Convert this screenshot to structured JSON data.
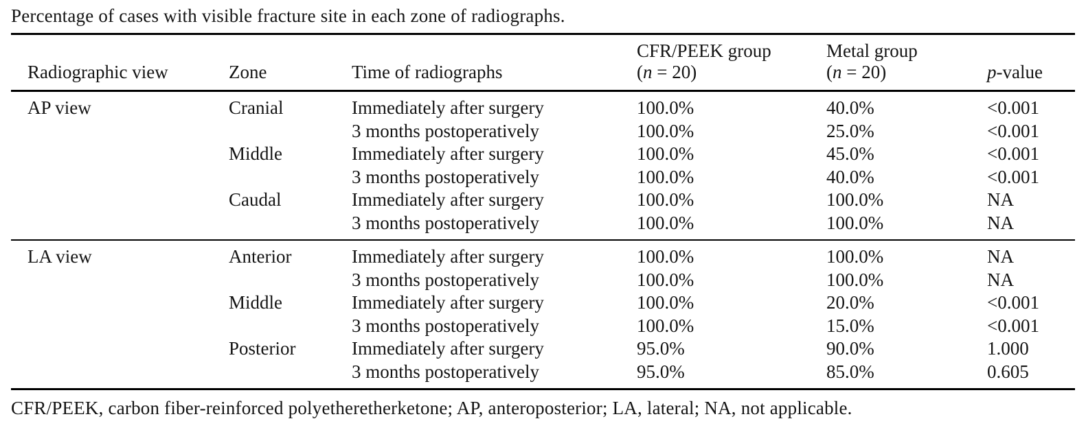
{
  "title": "Percentage of cases with visible fracture site in each zone of radiographs.",
  "table": {
    "header": {
      "col_view": "Radiographic view",
      "col_zone": "Zone",
      "col_time": "Time of radiographs",
      "col_cfr_line1": "CFR/PEEK group",
      "col_metal_line1": "Metal group",
      "n_open": "(",
      "n_var": "n",
      "n_rest": " = 20)",
      "p_var": "p",
      "p_rest": "-value"
    },
    "sections": [
      {
        "view": "AP view",
        "rows": [
          {
            "zone": "Cranial",
            "time": "Immediately after surgery",
            "cfr_peek": "100.0%",
            "metal": "40.0%",
            "p_value": "<0.001"
          },
          {
            "zone": "",
            "time": "3 months postoperatively",
            "cfr_peek": "100.0%",
            "metal": "25.0%",
            "p_value": "<0.001"
          },
          {
            "zone": "Middle",
            "time": "Immediately after surgery",
            "cfr_peek": "100.0%",
            "metal": "45.0%",
            "p_value": "<0.001"
          },
          {
            "zone": "",
            "time": "3 months postoperatively",
            "cfr_peek": "100.0%",
            "metal": "40.0%",
            "p_value": "<0.001"
          },
          {
            "zone": "Caudal",
            "time": "Immediately after surgery",
            "cfr_peek": "100.0%",
            "metal": "100.0%",
            "p_value": "NA"
          },
          {
            "zone": "",
            "time": "3 months postoperatively",
            "cfr_peek": "100.0%",
            "metal": "100.0%",
            "p_value": "NA"
          }
        ]
      },
      {
        "view": "LA view",
        "rows": [
          {
            "zone": "Anterior",
            "time": "Immediately after surgery",
            "cfr_peek": "100.0%",
            "metal": "100.0%",
            "p_value": "NA"
          },
          {
            "zone": "",
            "time": "3 months postoperatively",
            "cfr_peek": "100.0%",
            "metal": "100.0%",
            "p_value": "NA"
          },
          {
            "zone": "Middle",
            "time": "Immediately after surgery",
            "cfr_peek": "100.0%",
            "metal": "20.0%",
            "p_value": "<0.001"
          },
          {
            "zone": "",
            "time": "3 months postoperatively",
            "cfr_peek": "100.0%",
            "metal": "15.0%",
            "p_value": "<0.001"
          },
          {
            "zone": "Posterior",
            "time": "Immediately after surgery",
            "cfr_peek": "95.0%",
            "metal": "90.0%",
            "p_value": "1.000"
          },
          {
            "zone": "",
            "time": "3 months postoperatively",
            "cfr_peek": "95.0%",
            "metal": "85.0%",
            "p_value": "0.605"
          }
        ]
      }
    ]
  },
  "footnote": "CFR/PEEK, carbon fiber-reinforced polyetheretherketone; AP, anteroposterior; LA, lateral; NA, not applicable."
}
